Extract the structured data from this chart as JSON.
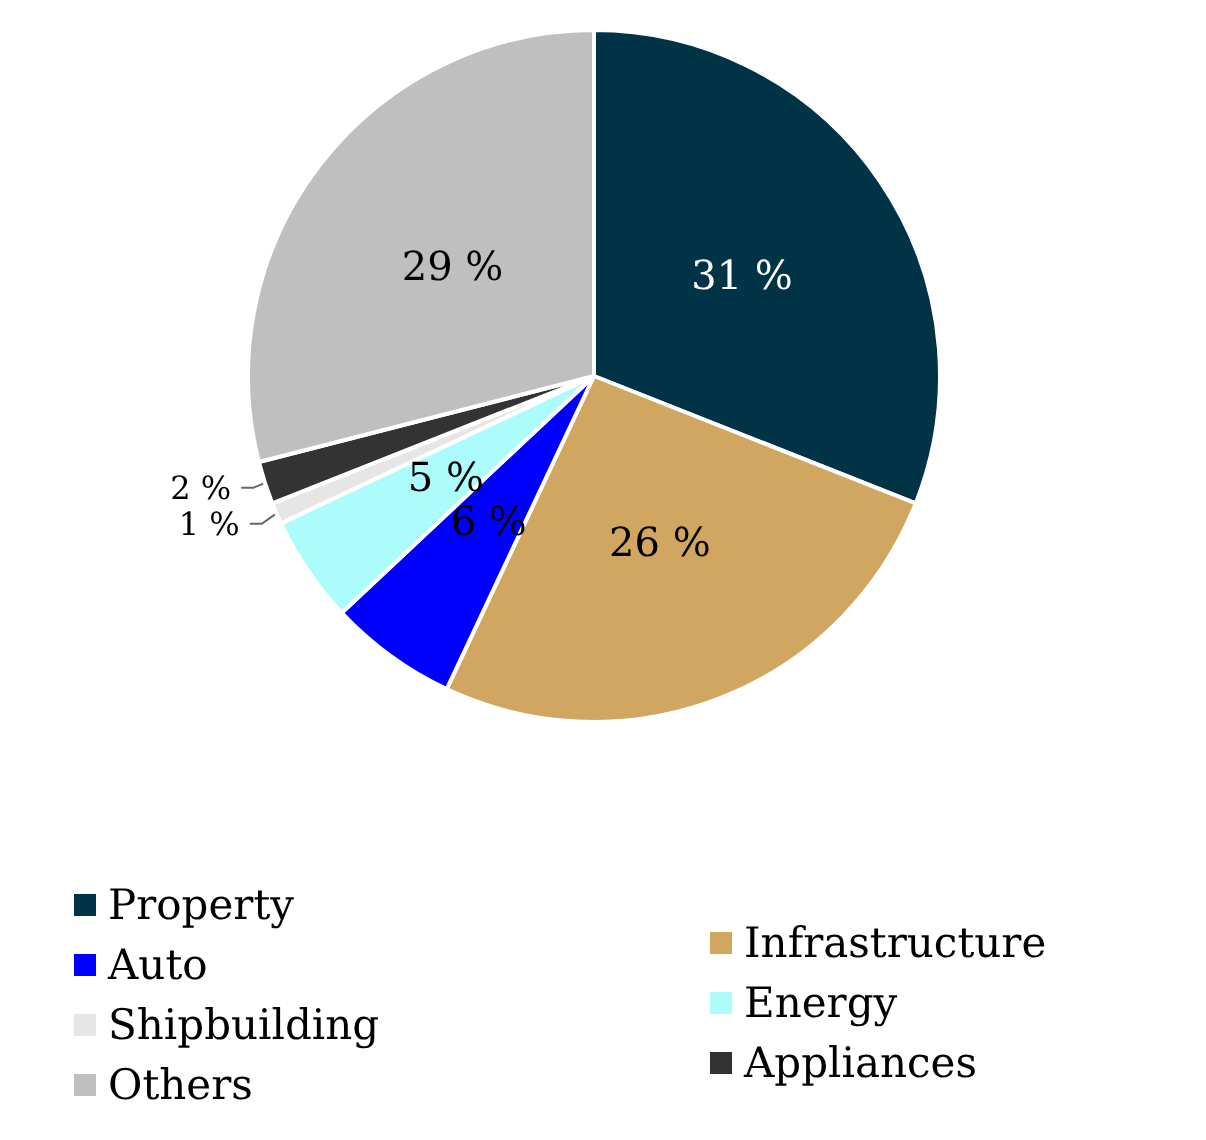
{
  "chart_data": {
    "type": "pie",
    "categories": [
      "Property",
      "Infrastructure",
      "Auto",
      "Energy",
      "Shipbuilding",
      "Appliances",
      "Others"
    ],
    "values": [
      31,
      26,
      6,
      5,
      1,
      2,
      29
    ],
    "colors": [
      "#003346",
      "#d0a660",
      "#0000ff",
      "#adfcfc",
      "#e6e6e6",
      "#333333",
      "#bfbfbf"
    ],
    "value_labels": [
      "31 %",
      "26 %",
      "6 %",
      "5 %",
      "1 %",
      "2 %",
      "29 %"
    ],
    "legend": "bottom"
  }
}
